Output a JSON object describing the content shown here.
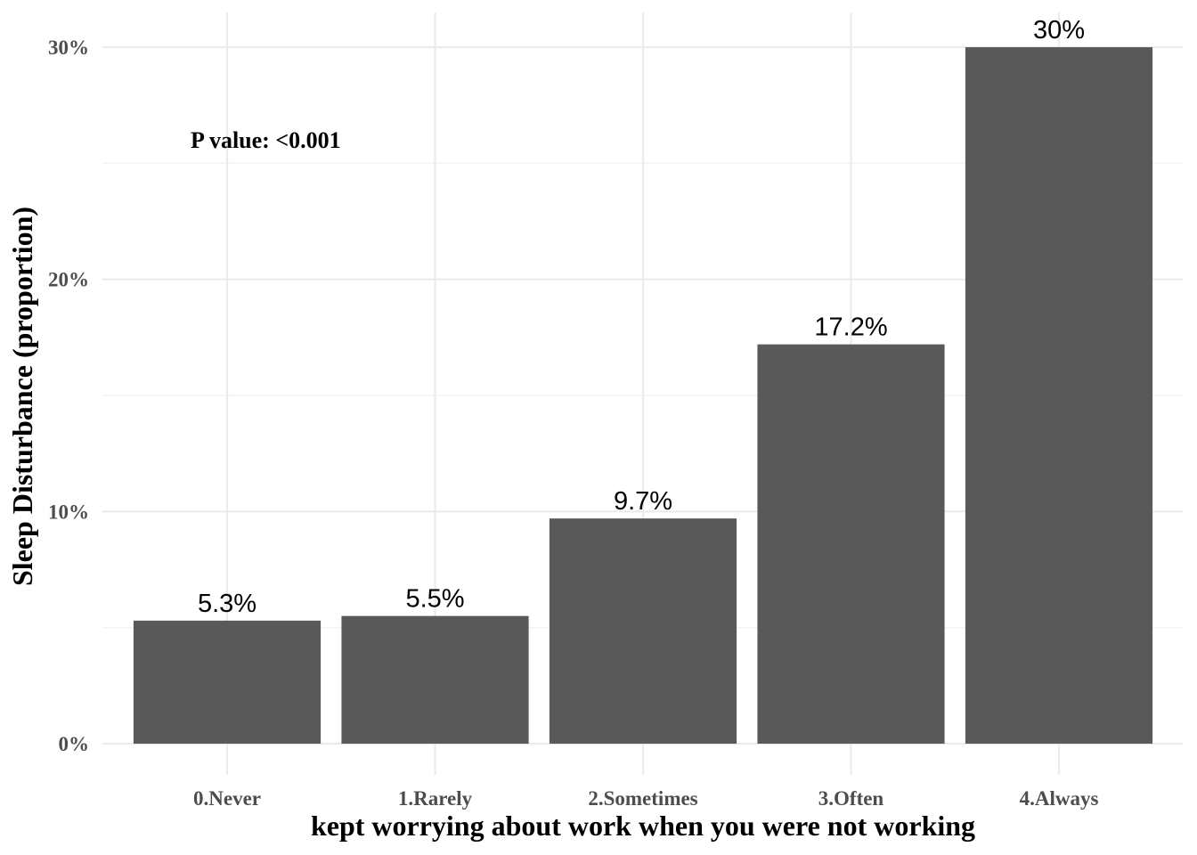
{
  "chart_data": {
    "type": "bar",
    "categories": [
      "0.Never",
      "1.Rarely",
      "2.Sometimes",
      "3.Often",
      "4.Always"
    ],
    "values": [
      5.3,
      5.5,
      9.7,
      17.2,
      30
    ],
    "data_labels": [
      "5.3%",
      "5.5%",
      "9.7%",
      "17.2%",
      "30%"
    ],
    "xlabel": "kept worrying about work when you were not working",
    "ylabel": "Sleep Disturbance (proportion)",
    "ylim": [
      0,
      30
    ],
    "yticks": [
      0,
      10,
      20,
      30
    ],
    "ytick_labels": [
      "0%",
      "10%",
      "20%",
      "30%"
    ],
    "annotation": "P value:  <0.001",
    "grid": true,
    "legend": "none",
    "bar_color": "#595959"
  }
}
